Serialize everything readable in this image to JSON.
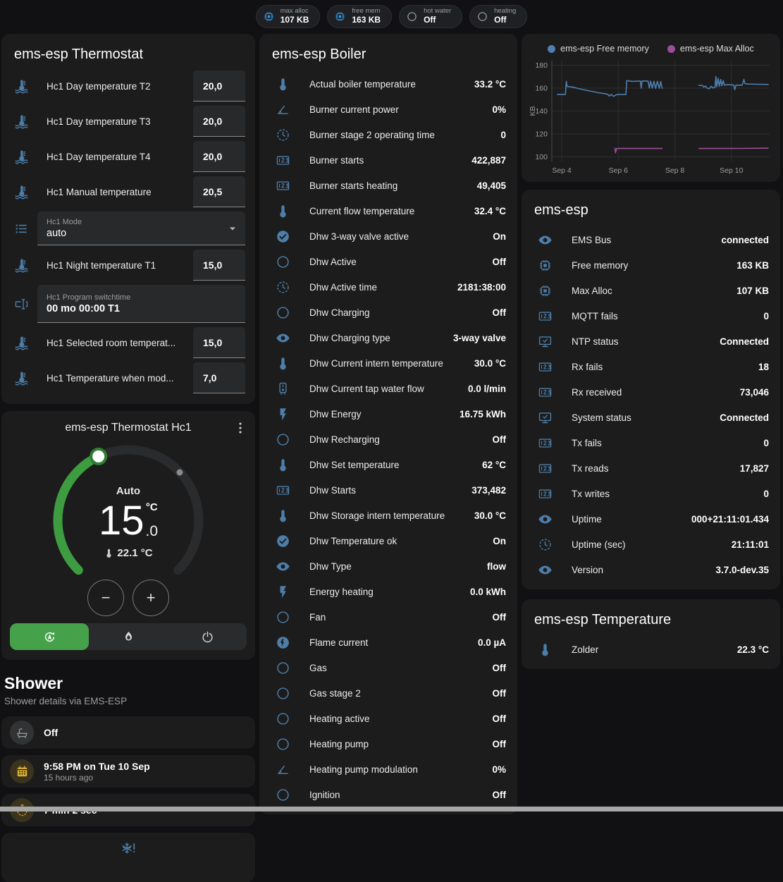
{
  "badges": [
    {
      "label": "max alloc",
      "value": "107 KB",
      "icon": "chip",
      "icon_color": "#2e9bef"
    },
    {
      "label": "free mem",
      "value": "163 KB",
      "icon": "chip",
      "icon_color": "#2e9bef"
    },
    {
      "label": "hot water",
      "value": "Off",
      "icon": "radio",
      "icon_color": "#9e9e9e"
    },
    {
      "label": "heating",
      "value": "Off",
      "icon": "radio",
      "icon_color": "#9e9e9e"
    }
  ],
  "thermostat_card": {
    "title": "ems-esp Thermostat",
    "rows": [
      {
        "kind": "number",
        "icon": "thermo-water",
        "label": "Hc1 Day temperature T2",
        "value": "20,0"
      },
      {
        "kind": "number",
        "icon": "thermo-water",
        "label": "Hc1 Day temperature T3",
        "value": "20,0"
      },
      {
        "kind": "number",
        "icon": "thermo-water",
        "label": "Hc1 Day temperature T4",
        "value": "20,0"
      },
      {
        "kind": "number",
        "icon": "thermo-water",
        "label": "Hc1 Manual temperature",
        "value": "20,5"
      },
      {
        "kind": "select",
        "icon": "list",
        "label": "Hc1 Mode",
        "value": "auto"
      },
      {
        "kind": "number",
        "icon": "thermo-water",
        "label": "Hc1 Night temperature T1",
        "value": "15,0"
      },
      {
        "kind": "text",
        "icon": "textbox",
        "label": "Hc1 Program switchtime",
        "value": "00 mo 00:00 T1"
      },
      {
        "kind": "number",
        "icon": "thermo-water",
        "label": "Hc1 Selected room temperat...",
        "value": "15,0"
      },
      {
        "kind": "number",
        "icon": "thermo-water",
        "label": "Hc1 Temperature when mod...",
        "value": "7,0"
      }
    ]
  },
  "hc1": {
    "title": "ems-esp Thermostat Hc1",
    "mode": "Auto",
    "target_int": "15",
    "target_unit": "°C",
    "target_dec": ".0",
    "current": "22.1 °C",
    "minus_label": "−",
    "plus_label": "+"
  },
  "shower": {
    "title": "Shower",
    "subtitle": "Shower details via EMS-ESP",
    "items": [
      {
        "icon": "bathtub",
        "fg": "#9e9e9e",
        "bg": "#323335",
        "primary": "Off",
        "secondary": ""
      },
      {
        "icon": "calendar",
        "fg": "#d9b02c",
        "bg": "rgba(217,176,44,0.16)",
        "primary": "9:58 PM on Tue 10 Sep",
        "secondary": "15 hours ago"
      },
      {
        "icon": "timer",
        "fg": "#d9b02c",
        "bg": "rgba(217,176,44,0.16)",
        "primary": "7 min 2 sec",
        "secondary": ""
      }
    ]
  },
  "boiler": {
    "title": "ems-esp Boiler",
    "rows": [
      {
        "icon": "thermometer",
        "label": "Actual boiler temperature",
        "value": "33.2 °C"
      },
      {
        "icon": "angle",
        "label": "Burner current power",
        "value": "0%"
      },
      {
        "icon": "clock",
        "label": "Burner stage 2 operating time",
        "value": "0"
      },
      {
        "icon": "counter",
        "label": "Burner starts",
        "value": "422,887"
      },
      {
        "icon": "counter",
        "label": "Burner starts heating",
        "value": "49,405"
      },
      {
        "icon": "thermometer",
        "label": "Current flow temperature",
        "value": "32.4 °C"
      },
      {
        "icon": "check-circle",
        "label": "Dhw 3-way valve active",
        "value": "On"
      },
      {
        "icon": "circle",
        "label": "Dhw Active",
        "value": "Off"
      },
      {
        "icon": "clock",
        "label": "Dhw Active time",
        "value": "2181:38:00"
      },
      {
        "icon": "circle",
        "label": "Dhw Charging",
        "value": "Off"
      },
      {
        "icon": "eye",
        "label": "Dhw Charging type",
        "value": "3-way valve"
      },
      {
        "icon": "thermometer",
        "label": "Dhw Current intern temperature",
        "value": "30.0 °C"
      },
      {
        "icon": "heater",
        "label": "Dhw Current tap water flow",
        "value": "0.0 l/min"
      },
      {
        "icon": "bolt",
        "label": "Dhw Energy",
        "value": "16.75 kWh"
      },
      {
        "icon": "circle",
        "label": "Dhw Recharging",
        "value": "Off"
      },
      {
        "icon": "thermometer",
        "label": "Dhw Set temperature",
        "value": "62 °C"
      },
      {
        "icon": "counter",
        "label": "Dhw Starts",
        "value": "373,482"
      },
      {
        "icon": "thermometer",
        "label": "Dhw Storage intern temperature",
        "value": "30.0 °C"
      },
      {
        "icon": "check-circle",
        "label": "Dhw Temperature ok",
        "value": "On"
      },
      {
        "icon": "eye",
        "label": "Dhw Type",
        "value": "flow"
      },
      {
        "icon": "bolt",
        "label": "Energy heating",
        "value": "0.0 kWh"
      },
      {
        "icon": "circle",
        "label": "Fan",
        "value": "Off"
      },
      {
        "icon": "bolt-circle",
        "label": "Flame current",
        "value": "0.0 µA"
      },
      {
        "icon": "circle",
        "label": "Gas",
        "value": "Off"
      },
      {
        "icon": "circle",
        "label": "Gas stage 2",
        "value": "Off"
      },
      {
        "icon": "circle",
        "label": "Heating active",
        "value": "Off"
      },
      {
        "icon": "circle",
        "label": "Heating pump",
        "value": "Off"
      },
      {
        "icon": "angle",
        "label": "Heating pump modulation",
        "value": "0%"
      },
      {
        "icon": "circle",
        "label": "Ignition",
        "value": "Off"
      }
    ]
  },
  "ems": {
    "title": "ems-esp",
    "rows": [
      {
        "icon": "eye",
        "label": "EMS Bus",
        "value": "connected"
      },
      {
        "icon": "chip",
        "label": "Free memory",
        "value": "163 KB"
      },
      {
        "icon": "chip",
        "label": "Max Alloc",
        "value": "107 KB"
      },
      {
        "icon": "counter",
        "label": "MQTT fails",
        "value": "0"
      },
      {
        "icon": "monitor",
        "label": "NTP status",
        "value": "Connected"
      },
      {
        "icon": "counter",
        "label": "Rx fails",
        "value": "18"
      },
      {
        "icon": "counter",
        "label": "Rx received",
        "value": "73,046"
      },
      {
        "icon": "monitor",
        "label": "System status",
        "value": "Connected"
      },
      {
        "icon": "counter",
        "label": "Tx fails",
        "value": "0"
      },
      {
        "icon": "counter",
        "label": "Tx reads",
        "value": "17,827"
      },
      {
        "icon": "counter",
        "label": "Tx writes",
        "value": "0"
      },
      {
        "icon": "eye",
        "label": "Uptime",
        "value": "000+21:11:01.434"
      },
      {
        "icon": "clock",
        "label": "Uptime (sec)",
        "value": "21:11:01"
      },
      {
        "icon": "eye",
        "label": "Version",
        "value": "3.7.0-dev.35"
      }
    ]
  },
  "temp_card": {
    "title": "ems-esp Temperature",
    "rows": [
      {
        "icon": "thermometer",
        "label": "Zolder",
        "value": "22.3 °C"
      }
    ]
  },
  "chart_data": {
    "type": "line",
    "ylabel": "KB",
    "ylim": [
      96,
      184
    ],
    "y_ticks": [
      100,
      120,
      140,
      160,
      180
    ],
    "x_domain": [
      3.65,
      11.35
    ],
    "x_ticks": [
      {
        "label": "Sep 4",
        "d": 4
      },
      {
        "label": "Sep 6",
        "d": 6
      },
      {
        "label": "Sep 8",
        "d": 8
      },
      {
        "label": "Sep 10",
        "d": 10
      }
    ],
    "legend_position": "top",
    "grid": true,
    "series": [
      {
        "name": "ems-esp Free memory",
        "color": "#4e7fae",
        "segments": [
          [
            [
              3.85,
              154.5
            ],
            [
              4.13,
              154.5
            ],
            [
              4.16,
              166
            ],
            [
              4.19,
              161.5
            ],
            [
              4.4,
              160.8
            ],
            [
              4.7,
              159
            ],
            [
              5.0,
              157.5
            ],
            [
              5.3,
              156
            ],
            [
              5.55,
              155
            ],
            [
              5.63,
              154.6
            ],
            [
              5.68,
              153
            ],
            [
              5.75,
              154.5
            ],
            [
              5.83,
              152.8
            ],
            [
              5.95,
              154.4
            ],
            [
              6.27,
              154.4
            ],
            [
              6.3,
              166.6
            ],
            [
              6.5,
              165.9
            ],
            [
              6.78,
              166.2
            ],
            [
              6.81,
              160
            ],
            [
              6.84,
              166.2
            ],
            [
              7.05,
              166.3
            ],
            [
              7.1,
              160
            ],
            [
              7.14,
              166.1
            ],
            [
              7.2,
              160
            ],
            [
              7.26,
              166
            ],
            [
              7.32,
              159.8
            ],
            [
              7.38,
              165.9
            ],
            [
              7.45,
              159.9
            ],
            [
              7.5,
              165.8
            ],
            [
              7.55,
              159.9
            ]
          ],
          [
            [
              8.85,
              162.4
            ],
            [
              8.98,
              162.3
            ],
            [
              9.02,
              160.8
            ],
            [
              9.08,
              161.8
            ],
            [
              9.15,
              159.8
            ],
            [
              9.22,
              159.6
            ],
            [
              9.28,
              161.6
            ],
            [
              9.35,
              160.2
            ],
            [
              9.42,
              160.6
            ],
            [
              9.45,
              170.2
            ],
            [
              9.48,
              161.2
            ],
            [
              9.53,
              168.6
            ],
            [
              9.57,
              161.6
            ],
            [
              9.62,
              167.6
            ],
            [
              9.66,
              162
            ],
            [
              9.71,
              166.6
            ],
            [
              9.75,
              162.6
            ],
            [
              9.85,
              163
            ],
            [
              10.0,
              162.8
            ],
            [
              10.08,
              162.8
            ],
            [
              10.12,
              158.6
            ],
            [
              10.16,
              162.6
            ],
            [
              10.38,
              162.6
            ],
            [
              10.44,
              167.6
            ],
            [
              10.48,
              163.9
            ],
            [
              10.6,
              163.6
            ],
            [
              10.9,
              163.4
            ],
            [
              11.3,
              163.2
            ]
          ]
        ]
      },
      {
        "name": "ems-esp Max Alloc",
        "color": "#9b4f9b",
        "segments": [
          [
            [
              5.88,
              107.6
            ],
            [
              5.9,
              103.6
            ],
            [
              5.94,
              107.3
            ],
            [
              7.55,
              107.3
            ]
          ],
          [
            [
              8.85,
              107.3
            ],
            [
              10.2,
              107.4
            ],
            [
              11.3,
              107.6
            ]
          ]
        ]
      }
    ]
  }
}
